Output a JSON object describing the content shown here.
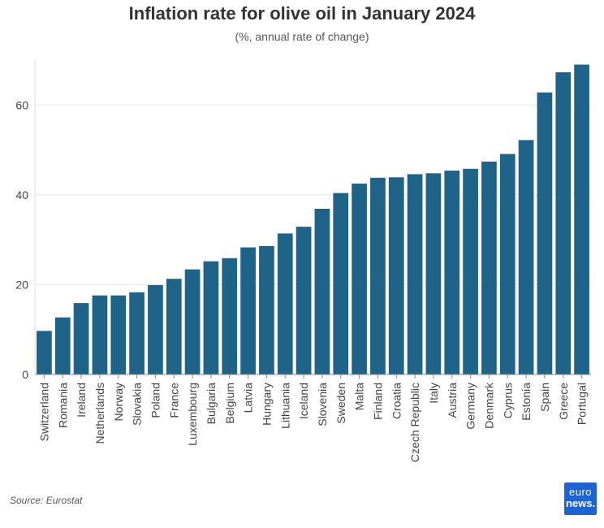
{
  "chart_data": {
    "type": "bar",
    "title": "Inflation rate for olive oil in January 2024",
    "subtitle": "(%, annual rate of change)",
    "xlabel": "",
    "ylabel": "",
    "ylim": [
      0,
      70
    ],
    "yticks": [
      0,
      20,
      40,
      60
    ],
    "grid": true,
    "categories": [
      "Switzerland",
      "Romania",
      "Ireland",
      "Netherlands",
      "Norway",
      "Slovakia",
      "Poland",
      "France",
      "Luxembourg",
      "Bulgaria",
      "Belgium",
      "Latvia",
      "Hungary",
      "Lithuania",
      "Iceland",
      "Slovenia",
      "Sweden",
      "Malta",
      "Finland",
      "Croatia",
      "Czech Republic",
      "Italy",
      "Austria",
      "Germany",
      "Denmark",
      "Cyprus",
      "Estonia",
      "Spain",
      "Greece",
      "Portugal"
    ],
    "values": [
      9.7,
      12.7,
      15.9,
      17.6,
      17.6,
      18.3,
      19.9,
      21.3,
      23.4,
      25.2,
      25.9,
      28.3,
      28.6,
      31.4,
      32.9,
      36.9,
      40.4,
      42.5,
      43.8,
      43.9,
      44.6,
      44.8,
      45.4,
      45.8,
      47.4,
      49.1,
      52.2,
      62.8,
      67.3,
      69.0
    ],
    "bar_color": "#1f6388",
    "grid_color": "#e5e5e5",
    "source": "Source: Eurostat"
  },
  "logo": {
    "line1": "euro",
    "line2": "news."
  }
}
